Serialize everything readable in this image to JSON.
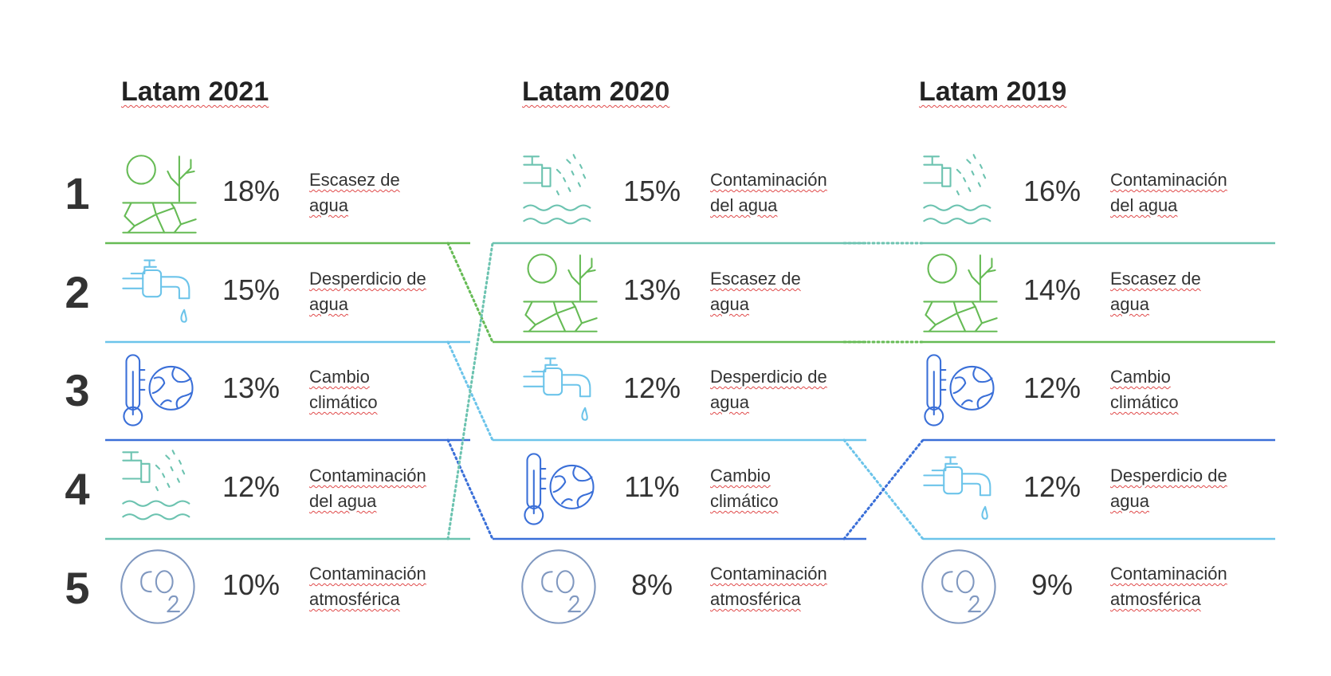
{
  "ranks": [
    "1",
    "2",
    "3",
    "4",
    "5"
  ],
  "colors": {
    "escasez": "#66bb55",
    "desperdicio": "#6cc4ea",
    "cambio": "#3a6fd8",
    "contaminacion_agua": "#6cc3b0",
    "atmosferica": "#8098c0"
  },
  "columns": [
    {
      "title": "Latam 2021",
      "items": [
        {
          "key": "escasez",
          "icon": "drought-icon",
          "percent": "18%",
          "label_lines": [
            "Escasez de",
            "agua"
          ]
        },
        {
          "key": "desperdicio",
          "icon": "faucet-icon",
          "percent": "15%",
          "label_lines": [
            "Desperdicio de",
            "agua"
          ]
        },
        {
          "key": "cambio",
          "icon": "climate-change-icon",
          "percent": "13%",
          "label_lines": [
            "Cambio",
            "climático"
          ]
        },
        {
          "key": "contaminacion_agua",
          "icon": "water-pollution-icon",
          "percent": "12%",
          "label_lines": [
            "Contaminación",
            "del agua"
          ]
        },
        {
          "key": "atmosferica",
          "icon": "co2-icon",
          "percent": "10%",
          "label_lines": [
            "Contaminación",
            "atmosférica"
          ]
        }
      ]
    },
    {
      "title": "Latam 2020",
      "items": [
        {
          "key": "contaminacion_agua",
          "icon": "water-pollution-icon",
          "percent": "15%",
          "label_lines": [
            "Contaminación",
            "del agua"
          ]
        },
        {
          "key": "escasez",
          "icon": "drought-icon",
          "percent": "13%",
          "label_lines": [
            "Escasez de",
            "agua"
          ]
        },
        {
          "key": "desperdicio",
          "icon": "faucet-icon",
          "percent": "12%",
          "label_lines": [
            "Desperdicio de",
            "agua"
          ]
        },
        {
          "key": "cambio",
          "icon": "climate-change-icon",
          "percent": "11%",
          "label_lines": [
            "Cambio",
            "climático"
          ]
        },
        {
          "key": "atmosferica",
          "icon": "co2-icon",
          "percent": "8%",
          "label_lines": [
            "Contaminación",
            "atmosférica"
          ]
        }
      ]
    },
    {
      "title": "Latam 2019",
      "items": [
        {
          "key": "contaminacion_agua",
          "icon": "water-pollution-icon",
          "percent": "16%",
          "label_lines": [
            "Contaminación",
            "del agua"
          ]
        },
        {
          "key": "escasez",
          "icon": "drought-icon",
          "percent": "14%",
          "label_lines": [
            "Escasez de",
            "agua"
          ]
        },
        {
          "key": "cambio",
          "icon": "climate-change-icon",
          "percent": "12%",
          "label_lines": [
            "Cambio",
            "climático"
          ]
        },
        {
          "key": "desperdicio",
          "icon": "faucet-icon",
          "percent": "12%",
          "label_lines": [
            "Desperdicio de",
            "agua"
          ]
        },
        {
          "key": "atmosferica",
          "icon": "co2-icon",
          "percent": "9%",
          "label_lines": [
            "Contaminación",
            "atmosférica"
          ]
        }
      ]
    }
  ]
}
